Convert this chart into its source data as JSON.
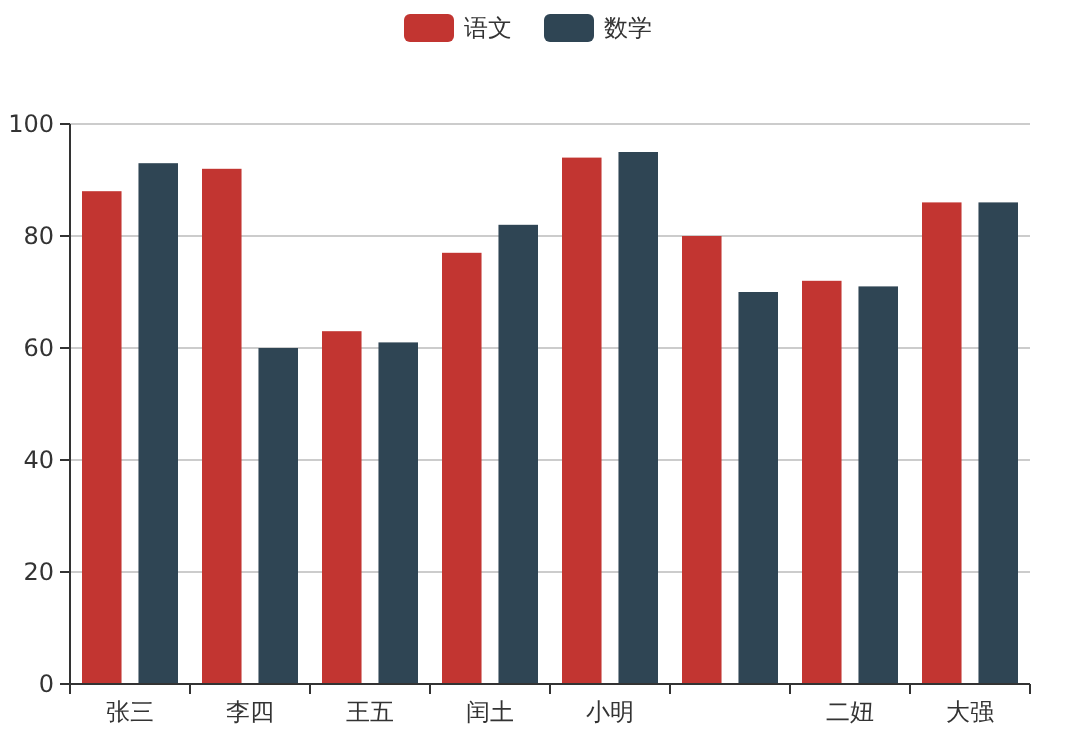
{
  "chart_data": {
    "type": "bar",
    "categories": [
      "张三",
      "李四",
      "王五",
      "闰土",
      "小明",
      null,
      "二妞",
      "大强"
    ],
    "series": [
      {
        "name": "语文",
        "color": "#c23531",
        "values": [
          88,
          92,
          63,
          77,
          94,
          80,
          72,
          86
        ]
      },
      {
        "name": "数学",
        "color": "#2f4554",
        "values": [
          93,
          60,
          61,
          82,
          95,
          70,
          71,
          86
        ]
      }
    ],
    "ylim": [
      0,
      100
    ],
    "yticks": [
      0,
      20,
      40,
      60,
      80,
      100
    ],
    "grid": "y",
    "legend": "top"
  }
}
